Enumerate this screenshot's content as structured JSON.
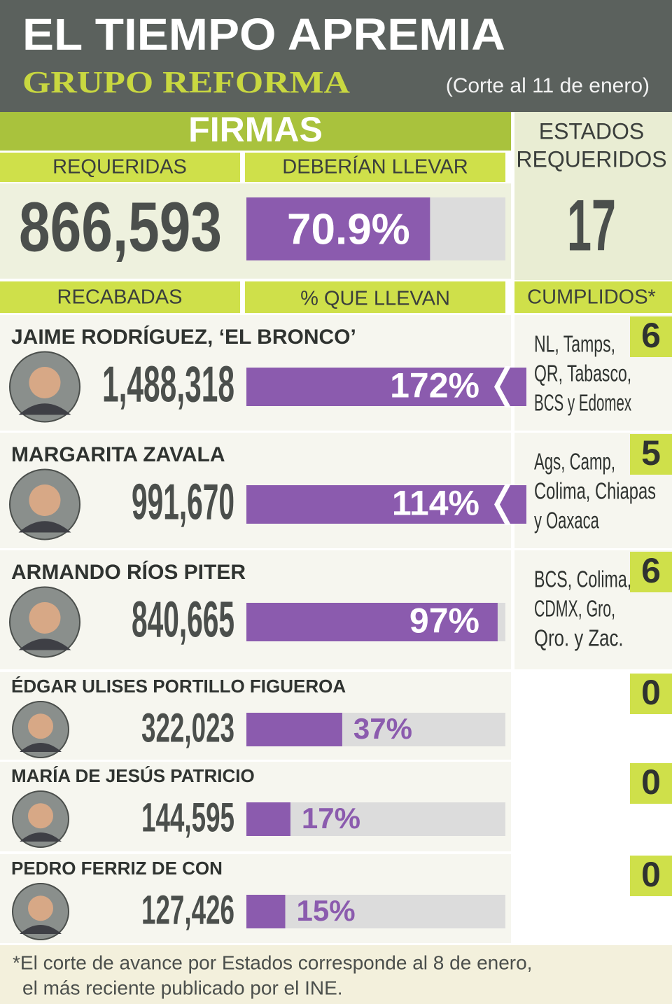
{
  "header": {
    "title": "EL TIEMPO APREMIA",
    "brand": "GRUPO REFORMA",
    "date_note": "(Corte al 11 de enero)"
  },
  "firmas": {
    "title": "FIRMAS",
    "required_label": "REQUERIDAS",
    "required": "866,593",
    "should_label": "DEBERÍAN LLEVAR",
    "should": 70.9,
    "should_label_text": "70.9%",
    "collected_label": "RECABADAS",
    "percent_label": "% QUE LLEVAN"
  },
  "estados": {
    "title": [
      "ESTADOS",
      "REQUERIDOS"
    ],
    "required": "17",
    "done_label": "CUMPLIDOS*"
  },
  "xlim": [
    0,
    100
  ],
  "candidates": [
    {
      "name": "JAIME RODRÍGUEZ, ‘EL BRONCO’",
      "signatures": "1,488,318",
      "percent": 172,
      "percent_label": "172%",
      "states_count": "6",
      "states": [
        "NL, Tamps,",
        "QR, Tabasco,",
        "BCS y Edomex"
      ]
    },
    {
      "name": "MARGARITA ZAVALA",
      "signatures": "991,670",
      "percent": 114,
      "percent_label": "114%",
      "states_count": "5",
      "states": [
        "Ags, Camp,",
        "Colima, Chiapas",
        "y Oaxaca"
      ]
    },
    {
      "name": "ARMANDO RÍOS PITER",
      "signatures": "840,665",
      "percent": 97,
      "percent_label": "97%",
      "states_count": "6",
      "states": [
        "BCS, Colima,",
        "CDMX, Gro,",
        "Qro. y Zac."
      ]
    },
    {
      "name": "ÉDGAR ULISES PORTILLO FIGUEROA",
      "signatures": "322,023",
      "percent": 37,
      "percent_label": "37%",
      "states_count": "0",
      "states": []
    },
    {
      "name": "MARÍA DE JESÚS PATRICIO",
      "signatures": "144,595",
      "percent": 17,
      "percent_label": "17%",
      "states_count": "0",
      "states": []
    },
    {
      "name": "PEDRO FERRIZ DE CON",
      "signatures": "127,426",
      "percent": 15,
      "percent_label": "15%",
      "states_count": "0",
      "states": []
    }
  ],
  "footnote": [
    "*El corte de avance por Estados corresponde al 8 de enero,",
    "el más reciente publicado por el INE."
  ]
}
